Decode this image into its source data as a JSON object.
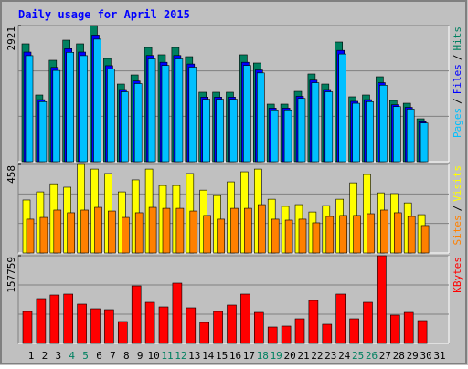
{
  "title": "Daily usage for April 2015",
  "chart_data": [
    {
      "type": "bar",
      "ylim": [
        0,
        2921
      ],
      "yticks": [
        2921
      ],
      "legend_separator": "/",
      "series": [
        {
          "name": "Hits",
          "color": "#008060",
          "values": [
            2529,
            1431,
            2176,
            2607,
            2529,
            2921,
            2215,
            1666,
            1862,
            2450,
            2294,
            2450,
            2254,
            1490,
            1490,
            1490,
            2294,
            2117,
            1235,
            1235,
            1509,
            1882,
            1666,
            2568,
            1392,
            1431,
            1823,
            1313,
            1254,
            921,
            null
          ]
        },
        {
          "name": "Files",
          "color": "#0000ff",
          "values": [
            2352,
            1331,
            2024,
            2425,
            2352,
            2717,
            2060,
            1549,
            1732,
            2279,
            2133,
            2279,
            2096,
            1386,
            1386,
            1386,
            2133,
            1969,
            1149,
            1149,
            1403,
            1750,
            1549,
            2388,
            1295,
            1331,
            1695,
            1221,
            1166,
            857,
            null
          ]
        },
        {
          "name": "Pages",
          "color": "#00c0ff",
          "values": [
            2276,
            1288,
            1958,
            2346,
            2276,
            2629,
            1994,
            1499,
            1676,
            2205,
            2065,
            2205,
            2029,
            1341,
            1341,
            1341,
            2065,
            1905,
            1112,
            1112,
            1358,
            1694,
            1499,
            2311,
            1253,
            1288,
            1641,
            1182,
            1129,
            829,
            null
          ]
        }
      ]
    },
    {
      "type": "bar",
      "ylim": [
        0,
        458
      ],
      "yticks": [
        458
      ],
      "legend_separator": "/",
      "series": [
        {
          "name": "Visits",
          "color": "#ffff00",
          "values": [
            274,
            316,
            358,
            340,
            458,
            434,
            411,
            316,
            378,
            434,
            349,
            349,
            411,
            325,
            297,
            368,
            420,
            434,
            278,
            241,
            250,
            212,
            245,
            278,
            363,
            406,
            311,
            307,
            259,
            198,
            null
          ]
        },
        {
          "name": "Sites",
          "color": "#ff8000",
          "values": [
            175,
            184,
            222,
            208,
            222,
            236,
            217,
            184,
            208,
            236,
            231,
            231,
            217,
            194,
            175,
            231,
            231,
            250,
            175,
            170,
            175,
            156,
            189,
            194,
            194,
            203,
            222,
            208,
            189,
            142,
            null
          ]
        }
      ]
    },
    {
      "type": "bar",
      "ylim": [
        0,
        157759
      ],
      "yticks": [
        157759
      ],
      "categories": [
        "1",
        "2",
        "3",
        "4",
        "5",
        "6",
        "7",
        "8",
        "9",
        "10",
        "11",
        "12",
        "13",
        "14",
        "15",
        "16",
        "17",
        "18",
        "19",
        "20",
        "21",
        "22",
        "23",
        "24",
        "25",
        "26",
        "27",
        "28",
        "29",
        "30",
        "31"
      ],
      "weekend_color": "#008060",
      "weekend_indexes": [
        3,
        4,
        10,
        11,
        17,
        18,
        24,
        25
      ],
      "series": [
        {
          "name": "KBytes",
          "color": "#ff0000",
          "values": [
            57513,
            80525,
            87098,
            88741,
            70663,
            62446,
            60803,
            39435,
            103530,
            73950,
            65732,
            108460,
            64089,
            37792,
            57513,
            69020,
            88741,
            55870,
            29578,
            31221,
            44364,
            77239,
            34507,
            88741,
            44364,
            73950,
            157759,
            50940,
            55870,
            41078,
            null
          ]
        }
      ]
    }
  ]
}
